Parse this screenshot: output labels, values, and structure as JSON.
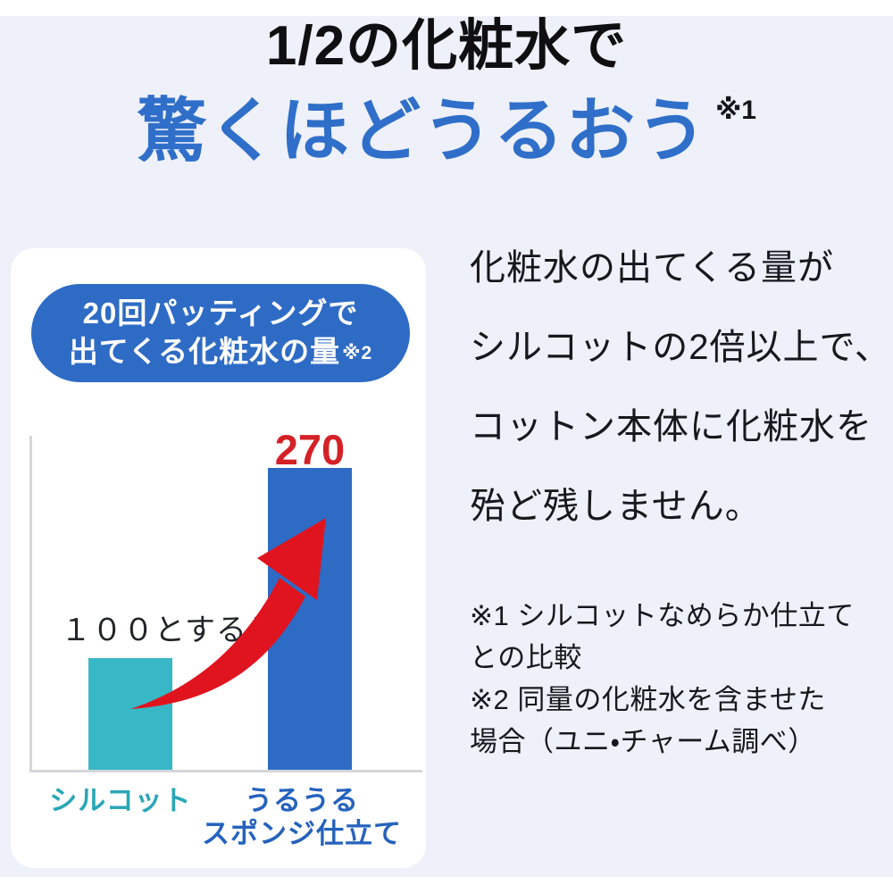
{
  "colors": {
    "page_background": "#eef0fa",
    "card_background": "#ffffff",
    "accent_blue": "#2e6bc5",
    "accent_teal": "#38b7c6",
    "teal_label_text": "#2aa7b6",
    "blue_label_text": "#2562bd",
    "arrow_red": "#e0141f",
    "value_red": "#d42127",
    "headline_blue": "#2f6fc9"
  },
  "header": {
    "line1": "1/2の化粧水で",
    "line2": "驚くほどうるおう",
    "note": "※1"
  },
  "chart_card": {
    "badge": {
      "line1": "20回パッティングで",
      "line2": "出てくる化粧水の量",
      "note": "※2"
    },
    "baseline_label": "１００とすると",
    "value_label": "270",
    "categories": {
      "first": "シルコット",
      "second_line1": "うるうる",
      "second_line2": "スポンジ仕立て"
    }
  },
  "chart_data": {
    "type": "bar",
    "title": "20回パッティングで出てくる化粧水の量※2",
    "categories": [
      "シルコット",
      "うるうるスポンジ仕立て"
    ],
    "values": [
      100,
      270
    ],
    "data_labels": [
      "１００とすると",
      "270"
    ],
    "bar_colors": [
      "#38b7c6",
      "#2e6bc5"
    ],
    "ylim": [
      0,
      300
    ],
    "grid": false,
    "legend": false,
    "annotation": "red curved arrow rising from first bar to second bar"
  },
  "main_text": {
    "lines": [
      "化粧水の出てくる量が",
      "シルコットの2倍以上で、",
      "コットン本体に化粧水を",
      "殆ど残しません。"
    ]
  },
  "footnotes": {
    "lines": [
      "※1 シルコットなめらか仕立て",
      "との比較",
      "※2 同量の化粧水を含ませた",
      "場合（ユニ・チャーム調べ）"
    ]
  }
}
